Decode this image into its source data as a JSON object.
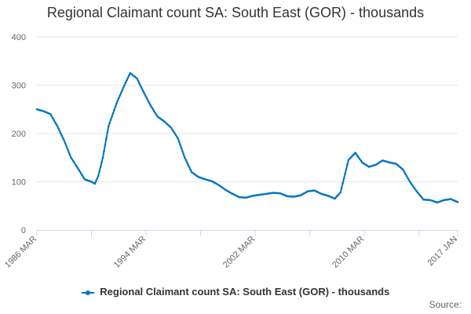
{
  "chart_data": {
    "type": "line",
    "title": "Regional Claimant count SA: South East (GOR) - thousands",
    "xlabel": "",
    "ylabel": "",
    "ylim": [
      0,
      400
    ],
    "y_ticks": [
      "0",
      "100",
      "200",
      "300",
      "400"
    ],
    "x_tick_labels": [
      "1986 MAR",
      "1994 MAR",
      "2002 MAR",
      "2010 MAR",
      "2017 JAN"
    ],
    "grid": true,
    "legend_position": "bottom",
    "series": [
      {
        "name": "Regional Claimant count SA: South East (GOR) - thousands",
        "color": "#0076c0",
        "points": [
          [
            "1986-03",
            250
          ],
          [
            "1986-09",
            246
          ],
          [
            "1987-03",
            240
          ],
          [
            "1987-09",
            215
          ],
          [
            "1988-03",
            185
          ],
          [
            "1988-09",
            150
          ],
          [
            "1989-03",
            128
          ],
          [
            "1989-09",
            105
          ],
          [
            "1990-03",
            100
          ],
          [
            "1990-06",
            96
          ],
          [
            "1990-09",
            112
          ],
          [
            "1991-01",
            150
          ],
          [
            "1991-06",
            215
          ],
          [
            "1992-01",
            262
          ],
          [
            "1992-07",
            295
          ],
          [
            "1993-01",
            325
          ],
          [
            "1993-07",
            314
          ],
          [
            "1994-01",
            285
          ],
          [
            "1994-07",
            258
          ],
          [
            "1995-01",
            235
          ],
          [
            "1995-07",
            225
          ],
          [
            "1996-01",
            212
          ],
          [
            "1996-07",
            190
          ],
          [
            "1997-01",
            150
          ],
          [
            "1997-07",
            120
          ],
          [
            "1998-01",
            110
          ],
          [
            "1998-07",
            105
          ],
          [
            "1999-01",
            101
          ],
          [
            "1999-07",
            93
          ],
          [
            "2000-01",
            83
          ],
          [
            "2000-07",
            75
          ],
          [
            "2001-01",
            68
          ],
          [
            "2001-07",
            67
          ],
          [
            "2002-01",
            71
          ],
          [
            "2002-07",
            73
          ],
          [
            "2003-01",
            75
          ],
          [
            "2003-07",
            77
          ],
          [
            "2004-01",
            76
          ],
          [
            "2004-07",
            70
          ],
          [
            "2005-01",
            69
          ],
          [
            "2005-07",
            72
          ],
          [
            "2006-01",
            80
          ],
          [
            "2006-07",
            82
          ],
          [
            "2007-01",
            75
          ],
          [
            "2007-07",
            71
          ],
          [
            "2008-01",
            65
          ],
          [
            "2008-06",
            78
          ],
          [
            "2009-01",
            145
          ],
          [
            "2009-07",
            160
          ],
          [
            "2010-01",
            140
          ],
          [
            "2010-07",
            131
          ],
          [
            "2011-01",
            135
          ],
          [
            "2011-07",
            144
          ],
          [
            "2012-01",
            140
          ],
          [
            "2012-07",
            137
          ],
          [
            "2013-01",
            125
          ],
          [
            "2013-07",
            100
          ],
          [
            "2014-01",
            80
          ],
          [
            "2014-07",
            63
          ],
          [
            "2015-01",
            62
          ],
          [
            "2015-07",
            57
          ],
          [
            "2016-01",
            62
          ],
          [
            "2016-07",
            64
          ],
          [
            "2017-01",
            58
          ]
        ]
      }
    ]
  },
  "legend": {
    "label": "Regional Claimant count SA: South East (GOR) - thousands"
  },
  "source": {
    "label": "Source:"
  },
  "colors": {
    "series": "#0076c0",
    "grid": "#e6e6e6",
    "axis": "#ccd6eb"
  }
}
